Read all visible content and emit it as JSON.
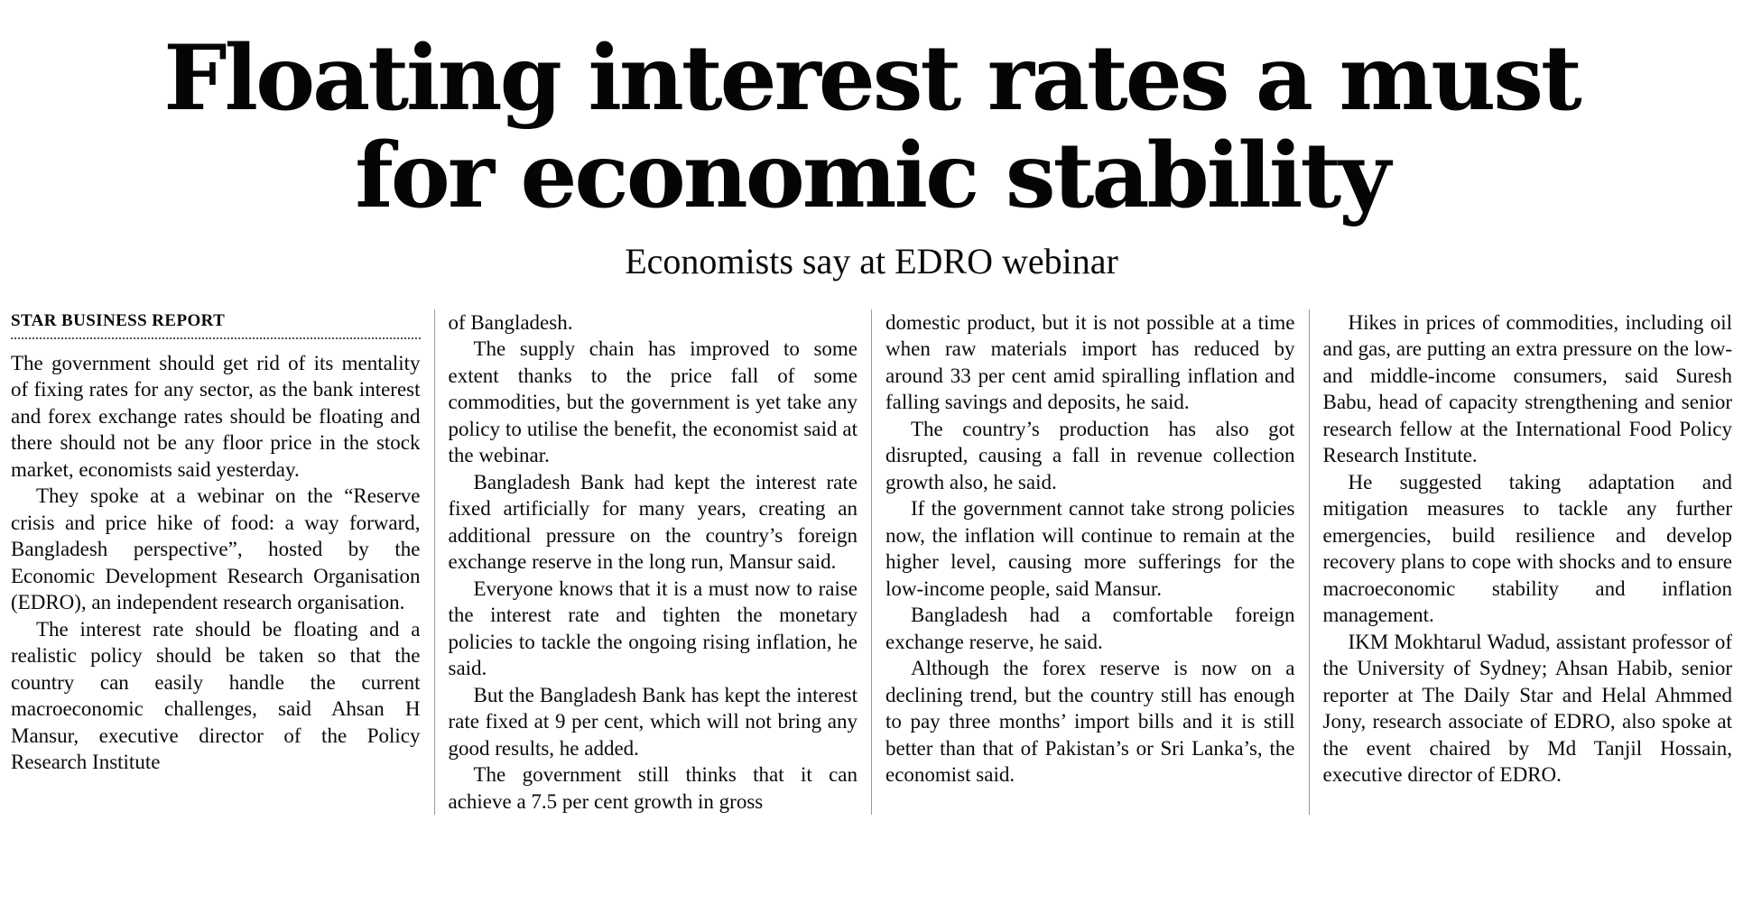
{
  "article": {
    "headline_lines": {
      "line1": "Floating interest rates a must",
      "line2": "for economic stability"
    },
    "subheadline": "Economists say at EDRO webinar",
    "byline": "STAR BUSINESS REPORT",
    "columns": [
      {
        "paragraphs": [
          "The government should get rid of its mentality of fixing rates for any sector, as the bank interest and forex exchange rates should be floating and there should not be any floor price in the stock market, economists said yesterday.",
          "They spoke at a webinar on the “Reserve crisis and price hike of food: a way forward, Bangladesh perspective”, hosted by the Economic Development Research Organisation (EDRO), an independent research organisation.",
          "The interest rate should be floating and a realistic policy should be taken so that the country can easily handle the current macroeconomic challenges, said Ahsan H Mansur, executive director of the Policy Research Institute"
        ]
      },
      {
        "paragraphs": [
          "of Bangladesh.",
          "The supply chain has improved to some extent thanks to the price fall of some commodities, but the government is yet take any policy to utilise the benefit, the economist said at the webinar.",
          "Bangladesh Bank had kept the interest rate fixed artificially for many years, creating an additional pressure on the country’s foreign exchange reserve in the long run, Mansur said.",
          "Everyone knows that it is a must now to raise the interest rate and tighten the monetary policies to tackle the ongoing rising inflation, he said.",
          "But the Bangladesh Bank has kept the interest rate fixed at 9 per cent, which will not bring any good results, he added.",
          "The government still thinks that it can achieve a 7.5 per cent growth in gross"
        ]
      },
      {
        "paragraphs": [
          "domestic product, but it is not possible at a time when raw materials import has reduced by around 33 per cent amid spiralling inflation and falling savings and deposits, he said.",
          "The country’s production has also got disrupted, causing a fall in revenue collection growth also, he said.",
          "If the government cannot take strong policies now, the inflation will continue to remain at the higher level, causing more sufferings for the low-income people, said Mansur.",
          "Bangladesh had a comfortable foreign exchange reserve, he said.",
          "Although the forex reserve is now on a declining trend, but the country still has enough to pay three months’ import bills and it is still better than that of Pakistan’s or Sri Lanka’s, the economist said."
        ]
      },
      {
        "paragraphs": [
          "Hikes in prices of commodities, including oil and gas, are putting an extra pressure on the low- and middle-income consumers, said Suresh Babu, head of capacity strengthening and senior research fellow at the International Food Policy Research Institute.",
          "He suggested taking adaptation and mitigation measures to tackle any further emergencies, build resilience and develop recovery plans to cope with shocks and to ensure macroeconomic stability and inflation management.",
          "IKM Mokhtarul Wadud, assistant professor of the University of Sydney; Ahsan Habib, senior reporter at The Daily Star and Helal Ahmmed Jony, research associate of EDRO, also spoke at the event chaired by Md Tanjil Hossain, executive director of EDRO."
        ]
      }
    ]
  }
}
